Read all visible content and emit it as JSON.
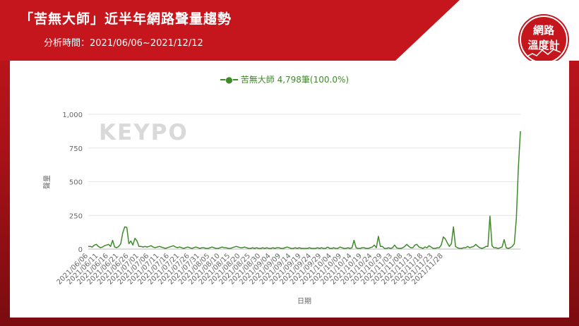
{
  "header": {
    "title": "「苦無大師」近半年網路聲量趨勢",
    "period": "分析時間：2021/06/06~2021/12/12"
  },
  "badge": {
    "line1": "網路",
    "line2": "溫度計"
  },
  "watermark": "KEYPO",
  "legend": {
    "label": "苦無大師 4,798筆(100.0%)"
  },
  "colors": {
    "brand_red": "#c4161c",
    "series": "#3f8a2a"
  },
  "chart_data": {
    "type": "line",
    "xlabel": "日期",
    "ylabel": "聲量",
    "ylim": [
      0,
      1000
    ],
    "yticks": [
      0,
      250,
      500,
      750,
      1000
    ],
    "ytick_labels": [
      "0",
      "250",
      "500",
      "750",
      "1,000"
    ],
    "grid": true,
    "legend_position": "top-center",
    "xtick_labels": [
      "2021/06/06",
      "2021/06/11",
      "2021/06/16",
      "2021/06/21",
      "2021/06/26",
      "2021/07/01",
      "2021/07/06",
      "2021/07/11",
      "2021/07/16",
      "2021/07/21",
      "2021/07/26",
      "2021/07/31",
      "2021/08/05",
      "2021/08/10",
      "2021/08/15",
      "2021/08/20",
      "2021/08/25",
      "2021/08/30",
      "2021/09/04",
      "2021/09/09",
      "2021/09/14",
      "2021/09/19",
      "2021/09/24",
      "2021/09/29",
      "2021/10/04",
      "2021/10/09",
      "2021/10/14",
      "2021/10/19",
      "2021/10/24",
      "2021/10/29",
      "2021/11/03",
      "2021/11/08",
      "2021/11/13",
      "2021/11/18",
      "2021/11/23",
      "2021/11/28"
    ],
    "series": [
      {
        "name": "苦無大師",
        "values": [
          20,
          20,
          15,
          30,
          35,
          20,
          10,
          15,
          25,
          30,
          35,
          20,
          65,
          15,
          10,
          20,
          40,
          120,
          165,
          160,
          40,
          60,
          30,
          80,
          60,
          20,
          20,
          15,
          20,
          15,
          20,
          25,
          15,
          10,
          15,
          20,
          15,
          10,
          5,
          10,
          15,
          20,
          25,
          15,
          10,
          15,
          10,
          5,
          10,
          15,
          10,
          5,
          10,
          15,
          10,
          5,
          10,
          10,
          5,
          5,
          10,
          15,
          10,
          5,
          5,
          10,
          15,
          10,
          10,
          5,
          5,
          10,
          15,
          20,
          15,
          10,
          10,
          15,
          10,
          5,
          5,
          10,
          5,
          10,
          5,
          5,
          10,
          5,
          10,
          5,
          5,
          10,
          5,
          10,
          10,
          5,
          5,
          10,
          15,
          10,
          5,
          5,
          10,
          5,
          10,
          5,
          5,
          5,
          5,
          10,
          5,
          5,
          5,
          10,
          5,
          10,
          5,
          5,
          15,
          5,
          5,
          10,
          5,
          5,
          15,
          10,
          5,
          5,
          10,
          5,
          10,
          65,
          10,
          5,
          5,
          10,
          10,
          5,
          5,
          10,
          15,
          30,
          10,
          95,
          20,
          20,
          5,
          5,
          10,
          5,
          10,
          30,
          10,
          5,
          5,
          10,
          20,
          35,
          20,
          10,
          10,
          30,
          35,
          15,
          10,
          5,
          15,
          10,
          25,
          15,
          5,
          5,
          10,
          10,
          30,
          90,
          75,
          45,
          20,
          40,
          165,
          20,
          10,
          5,
          5,
          10,
          10,
          20,
          10,
          15,
          20,
          35,
          20,
          10,
          5,
          10,
          20,
          20,
          245,
          25,
          10,
          10,
          5,
          10,
          15,
          70,
          10,
          5,
          10,
          20,
          40,
          230,
          600,
          875
        ]
      }
    ]
  }
}
